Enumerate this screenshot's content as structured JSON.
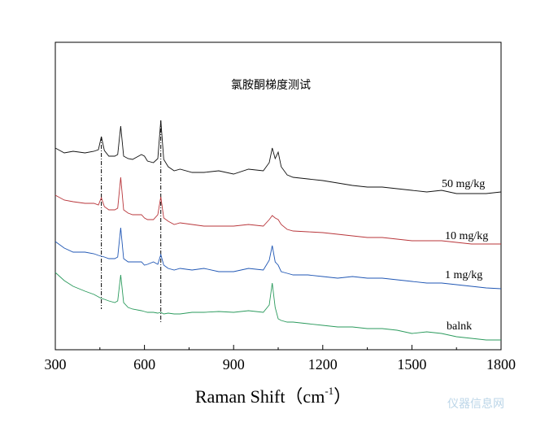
{
  "chart_data": {
    "type": "line",
    "title": "氯胺酮梯度测试",
    "xlabel": {
      "text": "Raman Shift（cm",
      "sup": "-1",
      "end": "）"
    },
    "x": [
      300,
      330,
      360,
      400,
      430,
      445,
      455,
      465,
      480,
      500,
      510,
      520,
      530,
      545,
      560,
      590,
      600,
      610,
      630,
      645,
      655,
      665,
      680,
      700,
      720,
      760,
      800,
      850,
      900,
      950,
      1000,
      1020,
      1030,
      1040,
      1050,
      1060,
      1080,
      1100,
      1150,
      1200,
      1250,
      1300,
      1350,
      1400,
      1450,
      1500,
      1550,
      1600,
      1650,
      1700,
      1750,
      1800
    ],
    "series": [
      {
        "name": "50 mg/kg",
        "color": "#111111",
        "values": [
          248,
          242,
          244,
          242,
          244,
          246,
          262,
          245,
          238,
          238,
          240,
          275,
          238,
          235,
          234,
          240,
          238,
          232,
          230,
          235,
          282,
          234,
          225,
          220,
          222,
          218,
          218,
          220,
          216,
          222,
          220,
          230,
          248,
          235,
          243,
          225,
          215,
          212,
          210,
          208,
          205,
          202,
          200,
          200,
          198,
          196,
          194,
          196,
          192,
          192,
          192,
          194
        ]
      },
      {
        "name": "10 mg/kg",
        "color": "#b8353a",
        "values": [
          190,
          184,
          182,
          180,
          180,
          178,
          187,
          176,
          172,
          172,
          174,
          212,
          172,
          168,
          166,
          166,
          162,
          160,
          160,
          166,
          188,
          162,
          158,
          154,
          156,
          154,
          152,
          152,
          152,
          154,
          152,
          160,
          165,
          162,
          160,
          154,
          148,
          146,
          145,
          144,
          142,
          140,
          138,
          138,
          136,
          134,
          134,
          134,
          132,
          130,
          130,
          130
        ]
      },
      {
        "name": "1 mg/kg",
        "color": "#1f56b4",
        "values": [
          133,
          125,
          120,
          120,
          118,
          116,
          115,
          114,
          112,
          112,
          114,
          150,
          112,
          108,
          108,
          108,
          104,
          105,
          108,
          105,
          117,
          104,
          100,
          98,
          100,
          98,
          100,
          96,
          96,
          100,
          98,
          110,
          128,
          108,
          104,
          96,
          94,
          92,
          92,
          90,
          88,
          90,
          88,
          88,
          86,
          84,
          82,
          82,
          80,
          78,
          76,
          75
        ]
      },
      {
        "name": "balnk",
        "color": "#2a9a5c",
        "values": [
          95,
          85,
          78,
          72,
          68,
          65,
          63,
          62,
          60,
          58,
          60,
          92,
          58,
          52,
          50,
          48,
          47,
          46,
          46,
          45,
          46,
          44,
          45,
          44,
          44,
          46,
          46,
          47,
          46,
          48,
          46,
          55,
          82,
          52,
          38,
          36,
          34,
          34,
          32,
          30,
          28,
          28,
          26,
          26,
          24,
          20,
          22,
          20,
          16,
          14,
          12,
          12
        ]
      }
    ],
    "vlines": [
      455,
      655
    ],
    "xlim": [
      300,
      1800
    ],
    "xticks": [
      300,
      600,
      900,
      1200,
      1500,
      1800
    ],
    "ylim": [
      0,
      378
    ],
    "watermark": "仪器信息网"
  }
}
